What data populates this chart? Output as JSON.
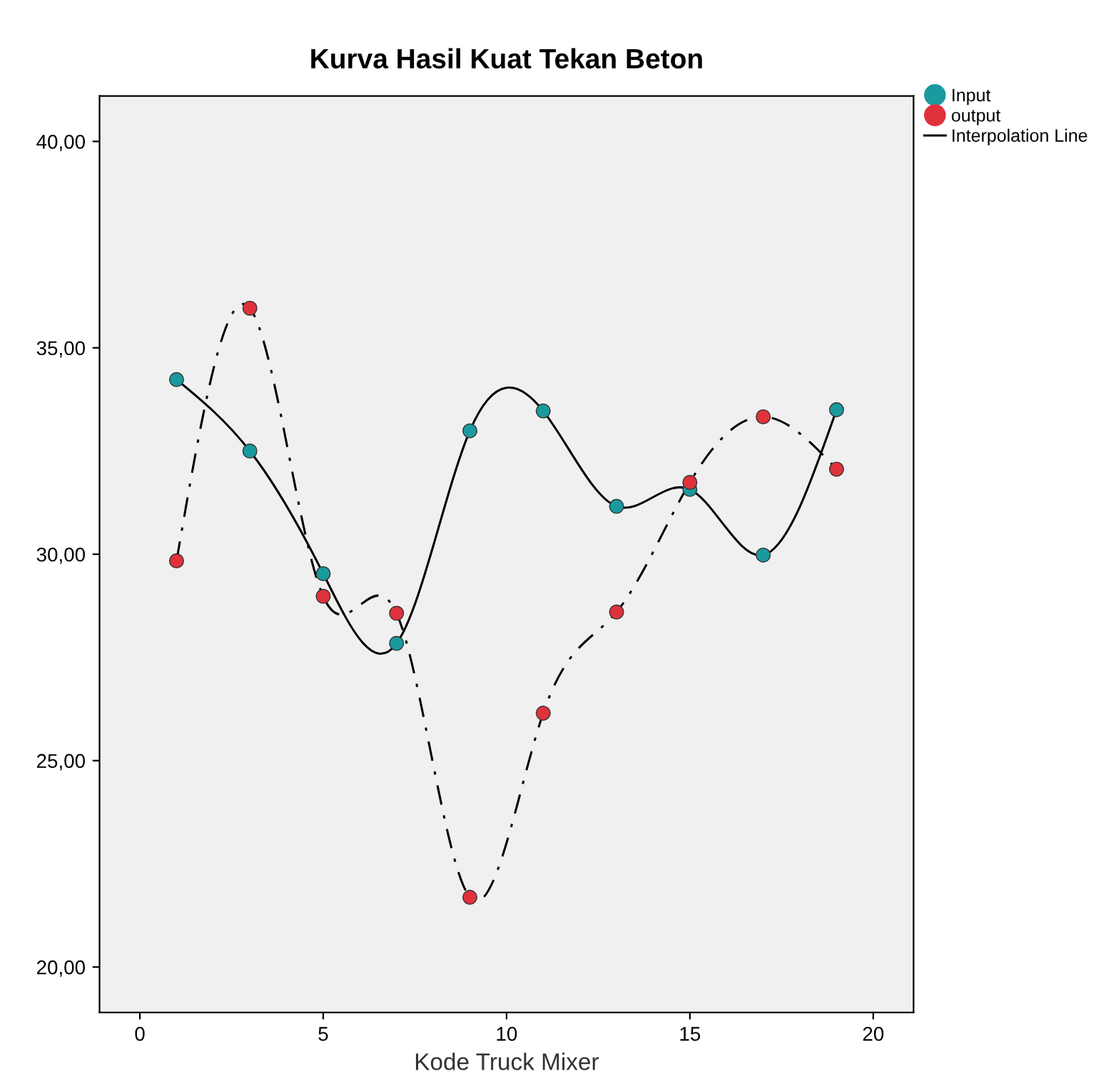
{
  "chart_data": {
    "type": "scatter",
    "title": "Kurva Hasil Kuat Tekan Beton",
    "xlabel": "Kode Truck Mixer",
    "x": [
      1,
      3,
      5,
      7,
      9,
      11,
      13,
      15,
      17,
      19
    ],
    "series": [
      {
        "name": "Input",
        "color": "#1a9a9e",
        "marker": "circle",
        "values": [
          34.23,
          32.5,
          29.53,
          27.84,
          32.99,
          33.47,
          31.16,
          31.57,
          29.98,
          33.5
        ]
      },
      {
        "name": "output",
        "color": "#e0323c",
        "marker": "circle",
        "values": [
          29.84,
          35.96,
          28.98,
          28.57,
          21.69,
          26.15,
          28.6,
          31.74,
          33.33,
          32.06
        ]
      },
      {
        "name": "Interpolation Line",
        "type": "line",
        "color": "#000000",
        "line_style": "solid",
        "marker": "none",
        "values": [
          34.23,
          32.5,
          29.53,
          27.84,
          32.99,
          33.47,
          31.16,
          31.57,
          29.98,
          33.5
        ]
      },
      {
        "type": "line",
        "color": "#000000",
        "line_style": "dashed",
        "marker": "none",
        "values": [
          29.84,
          35.96,
          28.98,
          28.57,
          21.69,
          26.15,
          28.6,
          31.74,
          33.33,
          32.06
        ]
      }
    ],
    "xlim": [
      -1.1,
      21.1
    ],
    "xticks": [
      0,
      5,
      10,
      15,
      20
    ],
    "ylim": [
      18.9,
      41.1
    ],
    "yticks": [
      {
        "value": 20,
        "label": "20,00"
      },
      {
        "value": 25,
        "label": "25,00"
      },
      {
        "value": 30,
        "label": "30,00"
      },
      {
        "value": 35,
        "label": "35,00"
      },
      {
        "value": 40,
        "label": "40,00"
      }
    ],
    "grid": false,
    "legend": "top right"
  }
}
